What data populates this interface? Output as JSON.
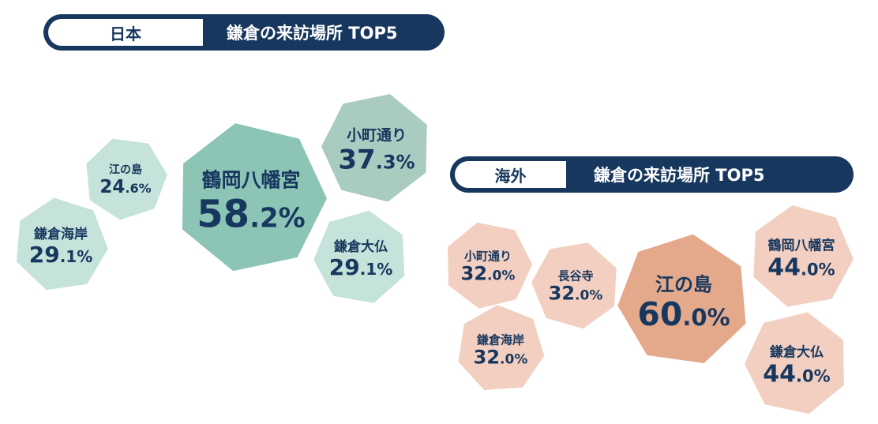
{
  "charts": {
    "japan": {
      "tag": "日本",
      "title": "鎌倉の来訪場所 TOP5"
    },
    "overseas": {
      "tag": "海外",
      "title": "鎌倉の来訪場所 TOP5"
    }
  },
  "chart_data": [
    {
      "type": "bubble",
      "title": "鎌倉の来訪場所 TOP5",
      "group": "日本",
      "categories": [
        "鶴岡八幡宮",
        "小町通り",
        "鎌倉海岸",
        "鎌倉大仏",
        "江の島"
      ],
      "values": [
        58.2,
        37.3,
        29.1,
        29.1,
        24.6
      ],
      "unit": "%",
      "color": "#8cc4b6"
    },
    {
      "type": "bubble",
      "title": "鎌倉の来訪場所 TOP5",
      "group": "海外",
      "categories": [
        "江の島",
        "鶴岡八幡宮",
        "鎌倉大仏",
        "小町通り",
        "長谷寺",
        "鎌倉海岸"
      ],
      "values": [
        60.0,
        44.0,
        44.0,
        32.0,
        32.0,
        32.0
      ],
      "unit": "%",
      "color": "#e4a98b"
    }
  ],
  "colors": {
    "title_bar": "#17375e",
    "text": "#17375e",
    "japan_top": "#8cc4b6",
    "japan_second": "#a9cbc0",
    "japan_rest": "#c5e3da",
    "overseas_top": "#e4a98b",
    "overseas_rest": "#f2cfc0"
  }
}
